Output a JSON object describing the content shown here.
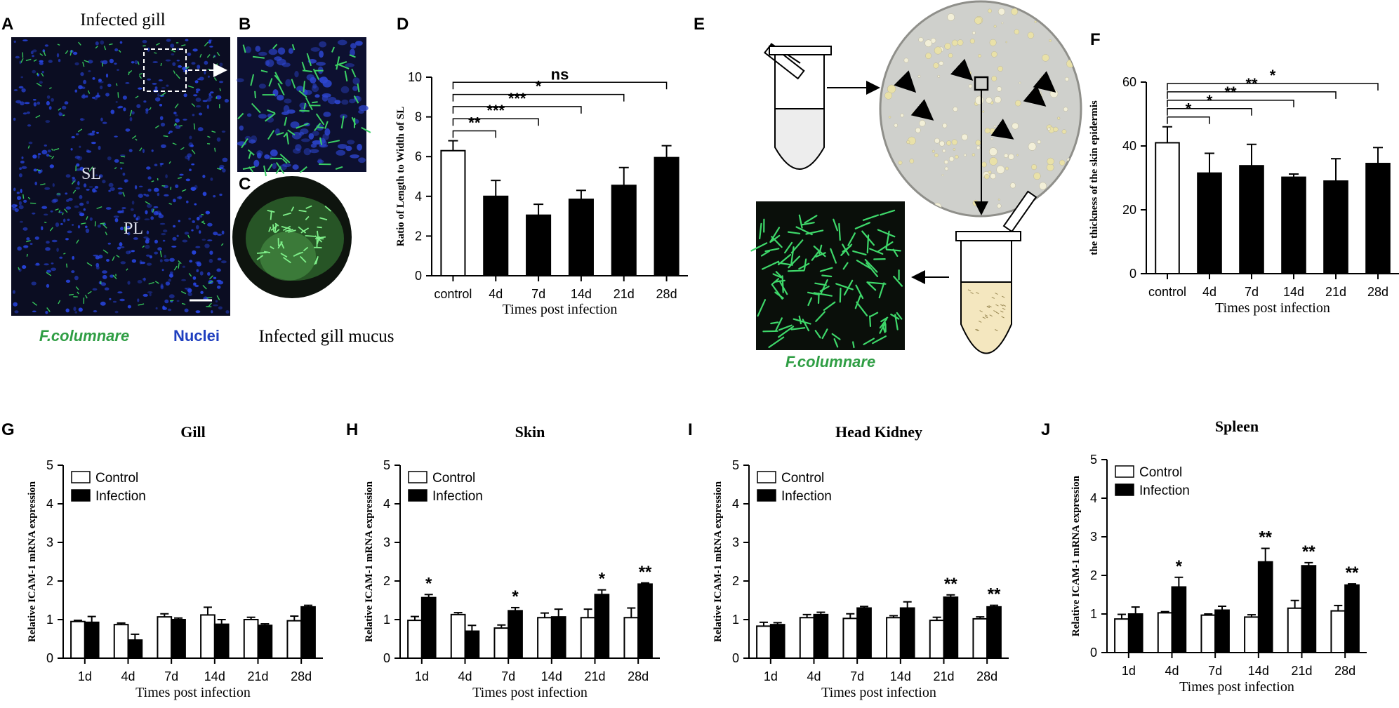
{
  "panels": {
    "A": {
      "letter": "A",
      "title": "Infected gill",
      "label_sl": "SL",
      "label_pl": "PL",
      "legend_green": "F.columnare",
      "legend_blue": "Nuclei"
    },
    "B": {
      "letter": "B"
    },
    "C": {
      "letter": "C",
      "caption": "Infected gill mucus"
    },
    "E": {
      "letter": "E",
      "caption": "F.columnare"
    }
  },
  "colors": {
    "bar_control": "#ffffff",
    "bar_infected": "#000000",
    "green": "#2db34a",
    "blue": "#1f3fbf"
  },
  "chart_data": [
    {
      "id": "D",
      "letter": "D",
      "type": "bar",
      "categories": [
        "control",
        "4d",
        "7d",
        "14d",
        "21d",
        "28d"
      ],
      "values": [
        6.3,
        4.0,
        3.05,
        3.85,
        4.55,
        5.95
      ],
      "errors": [
        0.5,
        0.8,
        0.55,
        0.45,
        0.9,
        0.6
      ],
      "bar_styles": [
        "open",
        "filled",
        "filled",
        "filled",
        "filled",
        "filled"
      ],
      "xlabel": "Times post infection",
      "ylabel": "Ratio of Length to Width of SL",
      "ylim": [
        0,
        10
      ],
      "yticks": [
        0,
        2,
        4,
        6,
        8,
        10
      ],
      "comparisons": [
        {
          "from": "control",
          "to": "4d",
          "label": "**"
        },
        {
          "from": "control",
          "to": "7d",
          "label": "***"
        },
        {
          "from": "control",
          "to": "14d",
          "label": "***"
        },
        {
          "from": "control",
          "to": "21d",
          "label": "*"
        },
        {
          "from": "control",
          "to": "28d",
          "label": "ns"
        }
      ]
    },
    {
      "id": "F",
      "letter": "F",
      "type": "bar",
      "categories": [
        "control",
        "4d",
        "7d",
        "14d",
        "21d",
        "28d"
      ],
      "values": [
        41,
        31.5,
        33.8,
        30.2,
        29,
        34.5
      ],
      "errors": [
        5,
        6.2,
        6.7,
        1,
        7,
        5
      ],
      "bar_styles": [
        "open",
        "filled",
        "filled",
        "filled",
        "filled",
        "filled"
      ],
      "xlabel": "Times post infection",
      "ylabel": "the thickness of the skin epidermis",
      "ylim": [
        0,
        60
      ],
      "yticks": [
        0,
        20,
        40,
        60
      ],
      "comparisons": [
        {
          "from": "control",
          "to": "4d",
          "label": "*"
        },
        {
          "from": "control",
          "to": "7d",
          "label": "*"
        },
        {
          "from": "control",
          "to": "14d",
          "label": "**"
        },
        {
          "from": "control",
          "to": "21d",
          "label": "**"
        },
        {
          "from": "control",
          "to": "28d",
          "label": "*"
        }
      ]
    },
    {
      "id": "G",
      "letter": "G",
      "type": "bar",
      "title": "Gill",
      "categories": [
        "1d",
        "4d",
        "7d",
        "14d",
        "21d",
        "28d"
      ],
      "series": [
        {
          "name": "Control",
          "values": [
            0.95,
            0.87,
            1.07,
            1.12,
            1.0,
            0.97
          ],
          "errors": [
            0.03,
            0.04,
            0.08,
            0.2,
            0.06,
            0.12
          ]
        },
        {
          "name": "Infection",
          "values": [
            0.93,
            0.47,
            1.0,
            0.88,
            0.85,
            1.33
          ],
          "errors": [
            0.15,
            0.15,
            0.04,
            0.12,
            0.04,
            0.04
          ]
        }
      ],
      "significance": [
        "",
        "",
        "",
        "",
        "",
        ""
      ],
      "xlabel": "Times post infection",
      "ylabel": "Relative ICAM-1 mRNA expression",
      "ylim": [
        0,
        5
      ],
      "yticks": [
        0,
        1,
        2,
        3,
        4,
        5
      ]
    },
    {
      "id": "H",
      "letter": "H",
      "type": "bar",
      "title": "Skin",
      "categories": [
        "1d",
        "4d",
        "7d",
        "14d",
        "21d",
        "28d"
      ],
      "series": [
        {
          "name": "Control",
          "values": [
            0.98,
            1.13,
            0.78,
            1.05,
            1.05,
            1.05
          ],
          "errors": [
            0.1,
            0.05,
            0.08,
            0.12,
            0.22,
            0.25
          ]
        },
        {
          "name": "Infection",
          "values": [
            1.57,
            0.7,
            1.23,
            1.07,
            1.65,
            1.92
          ],
          "errors": [
            0.08,
            0.15,
            0.08,
            0.2,
            0.12,
            0.03
          ]
        }
      ],
      "significance": [
        "*",
        "",
        "*",
        "",
        "*",
        "**"
      ],
      "xlabel": "Times post infection",
      "ylabel": "Relative ICAM-1 mRNA expression",
      "ylim": [
        0,
        5
      ],
      "yticks": [
        0,
        1,
        2,
        3,
        4,
        5
      ]
    },
    {
      "id": "I",
      "letter": "I",
      "type": "bar",
      "title": "Head Kidney",
      "categories": [
        "1d",
        "4d",
        "7d",
        "14d",
        "21d",
        "28d"
      ],
      "series": [
        {
          "name": "Control",
          "values": [
            0.83,
            1.05,
            1.03,
            1.05,
            0.98,
            1.02
          ],
          "errors": [
            0.1,
            0.08,
            0.12,
            0.05,
            0.08,
            0.05
          ]
        },
        {
          "name": "Infection",
          "values": [
            0.87,
            1.13,
            1.3,
            1.3,
            1.58,
            1.33
          ],
          "errors": [
            0.05,
            0.06,
            0.04,
            0.16,
            0.06,
            0.04
          ]
        }
      ],
      "significance": [
        "",
        "",
        "",
        "",
        "**",
        "**"
      ],
      "xlabel": "Times post infection",
      "ylabel": "Relative ICAM-1 mRNA expression",
      "ylim": [
        0,
        5
      ],
      "yticks": [
        0,
        1,
        2,
        3,
        4,
        5
      ]
    },
    {
      "id": "J",
      "letter": "J",
      "type": "bar",
      "title": "Spleen",
      "categories": [
        "1d",
        "4d",
        "7d",
        "14d",
        "21d",
        "28d"
      ],
      "series": [
        {
          "name": "Control",
          "values": [
            0.87,
            1.03,
            0.97,
            0.92,
            1.15,
            1.08
          ],
          "errors": [
            0.12,
            0.03,
            0.03,
            0.06,
            0.2,
            0.14
          ]
        },
        {
          "name": "Infection",
          "values": [
            1.0,
            1.7,
            1.1,
            2.35,
            2.25,
            1.75
          ],
          "errors": [
            0.18,
            0.25,
            0.1,
            0.35,
            0.08,
            0.03
          ]
        }
      ],
      "significance": [
        "",
        "*",
        "",
        "**",
        "**",
        "**"
      ],
      "xlabel": "Times post infection",
      "ylabel": "Relative ICAM-1 mRNA expression",
      "ylim": [
        0,
        5
      ],
      "yticks": [
        0,
        1,
        2,
        3,
        4,
        5
      ]
    }
  ]
}
